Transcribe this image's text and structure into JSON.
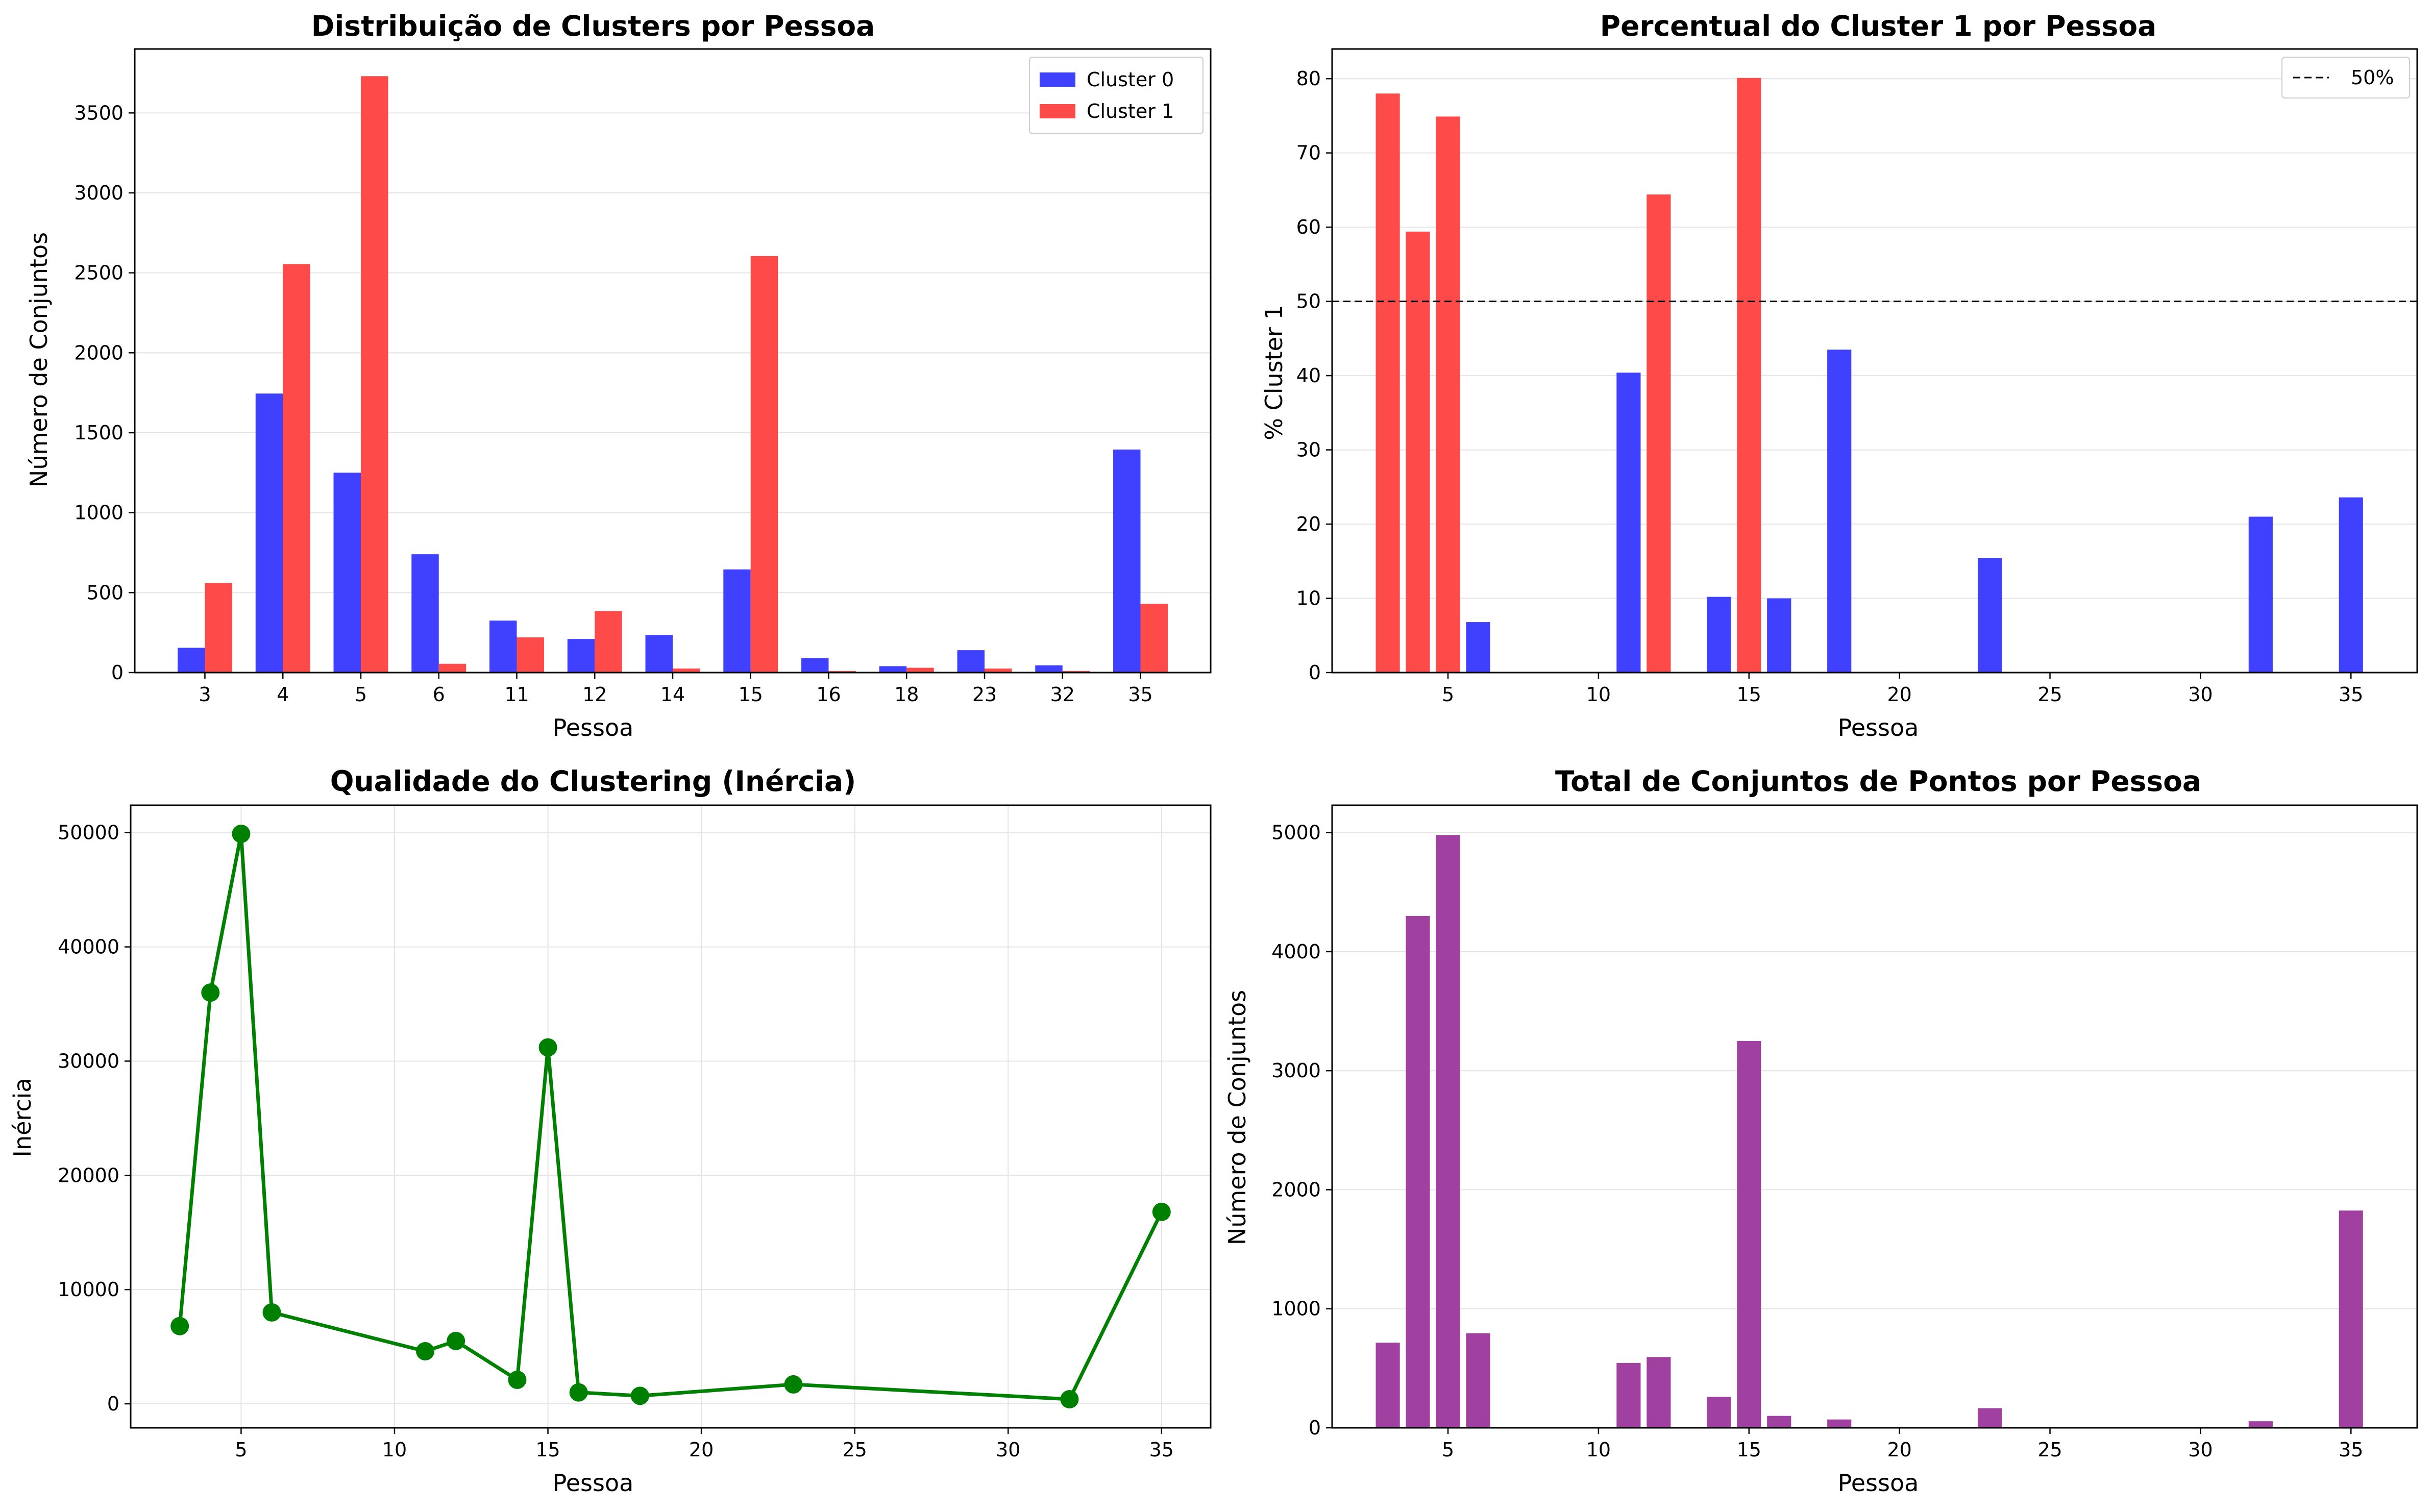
{
  "charts": [
    {
      "type": "bar",
      "title": "Distribuição de Clusters por Pessoa",
      "xlabel": "Pessoa",
      "ylabel": "Número de Conjuntos",
      "categories": [
        "3",
        "4",
        "5",
        "6",
        "11",
        "12",
        "14",
        "15",
        "16",
        "18",
        "23",
        "32",
        "35"
      ],
      "series": [
        {
          "name": "Cluster 0",
          "color": "#4040ff",
          "values": [
            155,
            1745,
            1250,
            740,
            325,
            210,
            235,
            645,
            90,
            40,
            140,
            45,
            1395
          ]
        },
        {
          "name": "Cluster 1",
          "color": "#ff4a4a",
          "values": [
            560,
            2555,
            3730,
            55,
            220,
            385,
            25,
            2605,
            10,
            30,
            25,
            10,
            430
          ]
        }
      ],
      "ylim": [
        0,
        3900
      ],
      "yticks": [
        0,
        500,
        1000,
        1500,
        2000,
        2500,
        3000,
        3500
      ],
      "grid": "y",
      "legend": "top-right"
    },
    {
      "type": "bar",
      "title": "Percentual do Cluster 1 por Pessoa",
      "xlabel": "Pessoa",
      "ylabel": "% Cluster 1",
      "x": [
        3,
        4,
        5,
        6,
        11,
        12,
        14,
        15,
        16,
        18,
        23,
        32,
        35
      ],
      "values": [
        78.0,
        59.4,
        74.9,
        6.8,
        40.4,
        64.4,
        10.2,
        80.1,
        10.0,
        43.5,
        15.4,
        21.0,
        23.6
      ],
      "colors": [
        "#ff4a4a",
        "#ff4a4a",
        "#ff4a4a",
        "#4040ff",
        "#4040ff",
        "#ff4a4a",
        "#4040ff",
        "#ff4a4a",
        "#4040ff",
        "#4040ff",
        "#4040ff",
        "#4040ff",
        "#4040ff"
      ],
      "hline": {
        "y": 50,
        "label": "50%"
      },
      "xlim": [
        1.15,
        37.2
      ],
      "ylim": [
        0,
        84
      ],
      "xticks": [
        5,
        10,
        15,
        20,
        25,
        30,
        35
      ],
      "yticks": [
        0,
        10,
        20,
        30,
        40,
        50,
        60,
        70,
        80
      ],
      "grid": "y",
      "legend": "top-right"
    },
    {
      "type": "line",
      "title": "Qualidade do Clustering (Inércia)",
      "xlabel": "Pessoa",
      "ylabel": "Inércia",
      "x": [
        3,
        4,
        5,
        6,
        11,
        12,
        14,
        15,
        16,
        18,
        23,
        32,
        35
      ],
      "y": [
        6800,
        36000,
        49900,
        8000,
        4600,
        5500,
        2100,
        31200,
        1000,
        700,
        1700,
        400,
        16800
      ],
      "color": "#008000",
      "xlim": [
        1.4,
        36.6
      ],
      "ylim": [
        -2100,
        52400
      ],
      "xticks": [
        5,
        10,
        15,
        20,
        25,
        30,
        35
      ],
      "yticks": [
        0,
        10000,
        20000,
        30000,
        40000,
        50000
      ],
      "grid": "both"
    },
    {
      "type": "bar",
      "title": "Total de Conjuntos de Pontos por Pessoa",
      "xlabel": "Pessoa",
      "ylabel": "Número de Conjuntos",
      "x": [
        3,
        4,
        5,
        6,
        11,
        12,
        14,
        15,
        16,
        18,
        23,
        32,
        35
      ],
      "values": [
        715,
        4300,
        4980,
        795,
        545,
        595,
        260,
        3250,
        100,
        70,
        165,
        55,
        1825
      ],
      "color": "#a040a0",
      "xlim": [
        1.15,
        37.2
      ],
      "ylim": [
        0,
        5230
      ],
      "xticks": [
        5,
        10,
        15,
        20,
        25,
        30,
        35
      ],
      "yticks": [
        0,
        1000,
        2000,
        3000,
        4000,
        5000
      ],
      "grid": "y"
    }
  ]
}
